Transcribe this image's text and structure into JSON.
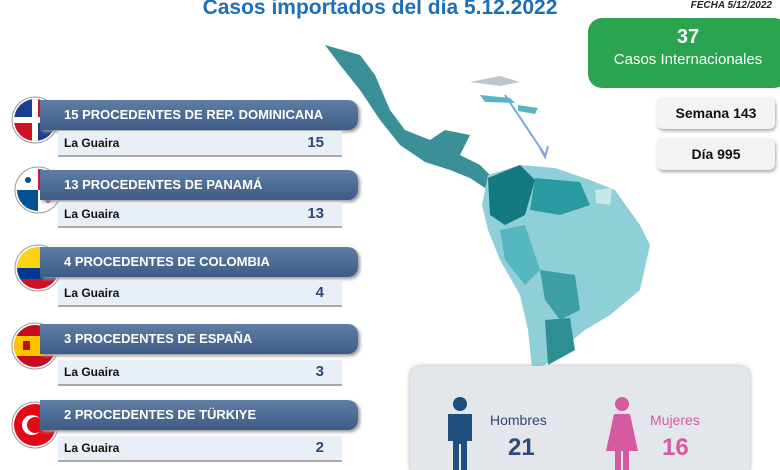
{
  "header": {
    "title": "Casos importados del día 5.12.2022",
    "date": "FECHA 5/12/2022"
  },
  "summary": {
    "total": "37",
    "total_label": "Casos Internacionales",
    "week": "Semana 143",
    "day": "Día 995"
  },
  "origins": [
    {
      "label": "15 PROCEDENTES DE REP. DOMINICANA",
      "state": "La Guaira",
      "count": 15
    },
    {
      "label": "13 PROCEDENTES DE PANAMÁ",
      "state": "La Guaira",
      "count": 13
    },
    {
      "label": "4 PROCEDENTES DE COLOMBIA",
      "state": "La Guaira",
      "count": 4
    },
    {
      "label": "3 PROCEDENTES DE ESPAÑA",
      "state": "La Guaira",
      "count": 3
    },
    {
      "label": "2 PROCEDENTES DE TÜRKIYE",
      "state": "La Guaira",
      "count": 2
    }
  ],
  "gender": {
    "men_label": "Hombres",
    "men": 21,
    "women_label": "Mujeres",
    "women": 16
  }
}
